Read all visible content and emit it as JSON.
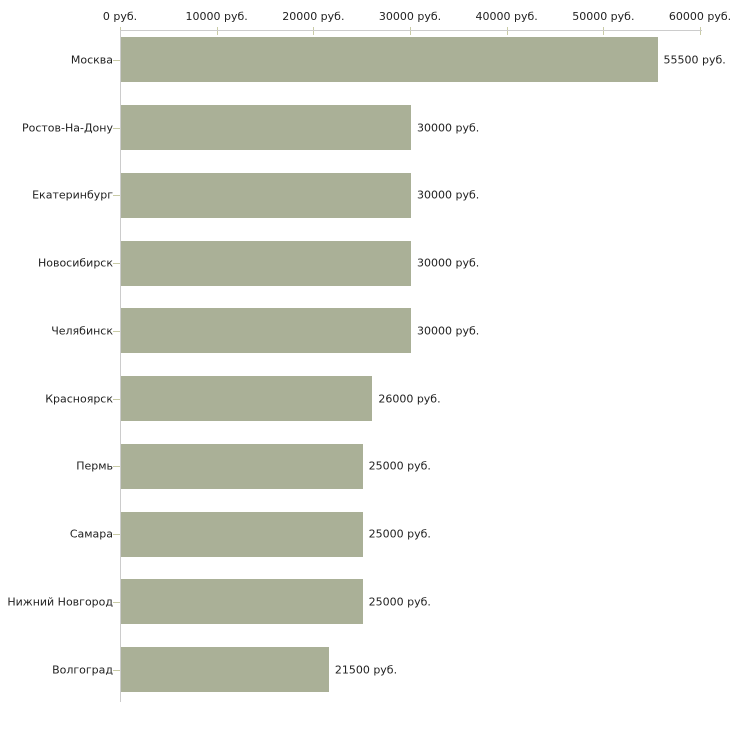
{
  "chart_data": {
    "type": "bar",
    "orientation": "horizontal",
    "categories": [
      "Москва",
      "Ростов-На-Дону",
      "Екатеринбург",
      "Новосибирск",
      "Челябинск",
      "Красноярск",
      "Пермь",
      "Самара",
      "Нижний Новгород",
      "Волгоград"
    ],
    "values": [
      55500,
      30000,
      30000,
      30000,
      30000,
      26000,
      25000,
      25000,
      25000,
      21500
    ],
    "value_labels": [
      "55500 руб.",
      "30000 руб.",
      "30000 руб.",
      "30000 руб.",
      "30000 руб.",
      "26000 руб.",
      "25000 руб.",
      "25000 руб.",
      "25000 руб.",
      "21500 руб."
    ],
    "x_ticks": [
      0,
      10000,
      20000,
      30000,
      40000,
      50000,
      60000
    ],
    "x_tick_labels": [
      "0 руб.",
      "10000 руб.",
      "20000 руб.",
      "30000 руб.",
      "40000 руб.",
      "50000 руб.",
      "60000 руб."
    ],
    "xlim": [
      0,
      60000
    ],
    "unit": "руб.",
    "grid": false,
    "legend": "none",
    "colors": {
      "bar_fill": "#aab097",
      "axis_line": "#cccccc",
      "tick_mark": "#c9cba6",
      "text": "#222222",
      "background": "#ffffff"
    }
  }
}
